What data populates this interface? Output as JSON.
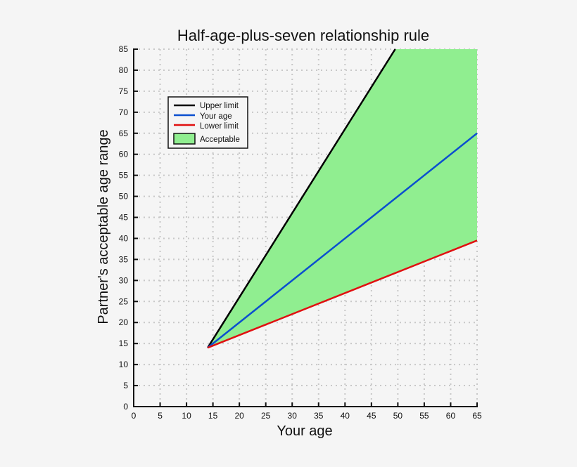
{
  "chart_data": {
    "type": "area",
    "title": "Half-age-plus-seven relationship rule",
    "xlabel": "Your age",
    "ylabel": "Partner's acceptable age range",
    "xlim": [
      0,
      65
    ],
    "ylim": [
      0,
      85
    ],
    "xticks": [
      0,
      5,
      10,
      15,
      20,
      25,
      30,
      35,
      40,
      45,
      50,
      55,
      60,
      65
    ],
    "yticks": [
      0,
      5,
      10,
      15,
      20,
      25,
      30,
      35,
      40,
      45,
      50,
      55,
      60,
      65,
      70,
      75,
      80,
      85
    ],
    "grid": true,
    "legend_position": "upper-left",
    "series": [
      {
        "name": "Upper limit",
        "color": "#000000",
        "x": [
          14,
          49.5
        ],
        "y": [
          14,
          85
        ]
      },
      {
        "name": "Your age",
        "color": "#0b4fcf",
        "x": [
          14,
          65
        ],
        "y": [
          14,
          65
        ]
      },
      {
        "name": "Lower limit",
        "color": "#e01010",
        "x": [
          14,
          65
        ],
        "y": [
          14,
          39.5
        ]
      }
    ],
    "fill": {
      "name": "Acceptable",
      "color": "#90ee90",
      "between": [
        "Lower limit",
        "Upper limit"
      ],
      "x_start": 14
    }
  },
  "colors": {
    "background": "#f5f5f5",
    "grid": "#c8c8c8"
  }
}
